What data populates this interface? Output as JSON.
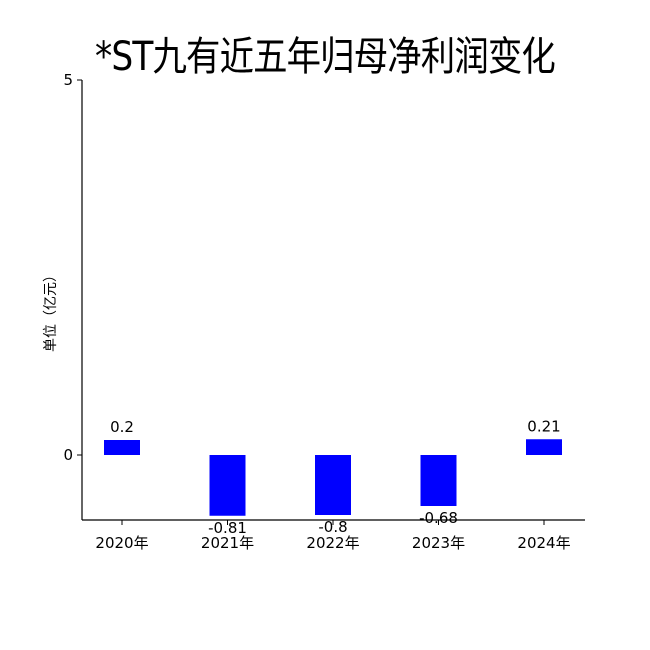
{
  "chart_data": {
    "type": "bar",
    "title": "*ST九有近五年归母净利润变化",
    "ylabel": "单位（亿元）",
    "xlabel": "",
    "categories": [
      "2020年",
      "2021年",
      "2022年",
      "2023年",
      "2024年"
    ],
    "values": [
      0.2,
      -0.81,
      -0.8,
      -0.68,
      0.21
    ],
    "value_labels": [
      "0.2",
      "-0.81",
      "-0.8",
      "-0.68",
      "0.21"
    ],
    "ylim": [
      -0.87,
      5
    ],
    "yticks": [
      0,
      5
    ],
    "ytick_labels": [
      "0",
      "5"
    ],
    "bar_color": "#0000ff",
    "grid": false,
    "legend": "none"
  }
}
